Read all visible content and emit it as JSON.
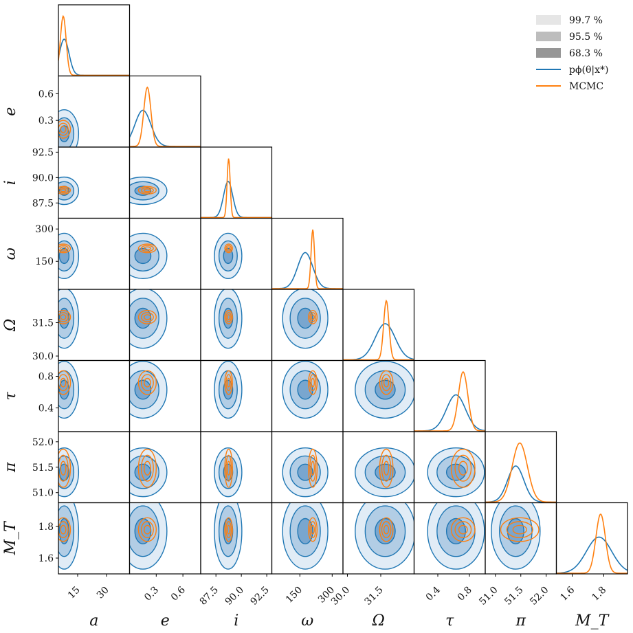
{
  "chart_data": {
    "type": "corner",
    "parameters": [
      "a",
      "e",
      "i",
      "ω",
      "Ω",
      "τ",
      "π",
      "M_T"
    ],
    "axis_labels": [
      "a",
      "e",
      "i",
      "ω",
      "Ω",
      "τ",
      "π",
      "M_T"
    ],
    "ranges": [
      [
        5,
        42
      ],
      [
        0.0,
        0.8
      ],
      [
        86.0,
        93.0
      ],
      [
        20,
        350
      ],
      [
        29.8,
        33.0
      ],
      [
        0.1,
        1.0
      ],
      [
        50.8,
        52.2
      ],
      [
        1.5,
        1.95
      ]
    ],
    "x_ticks": [
      [
        15,
        30
      ],
      [
        0.3,
        0.6
      ],
      [
        87.5,
        90.0,
        92.5
      ],
      [
        150,
        300
      ],
      [
        30.0,
        31.5
      ],
      [
        0.4,
        0.8
      ],
      [
        51.0,
        51.5,
        52.0
      ],
      [
        1.6,
        1.8
      ]
    ],
    "y_ticks": [
      null,
      [
        0.3,
        0.6
      ],
      [
        87.5,
        90.0,
        92.5
      ],
      [
        150,
        300
      ],
      [
        30.0,
        31.5
      ],
      [
        0.4,
        0.8
      ],
      [
        51.0,
        51.5,
        52.0
      ],
      [
        1.6,
        1.8
      ]
    ],
    "estimates": {
      "p_phi": {
        "center": [
          8,
          0.15,
          88.7,
          175,
          31.7,
          0.63,
          51.4,
          1.77
        ],
        "spread": [
          2.5,
          0.09,
          0.45,
          35,
          0.45,
          0.12,
          0.16,
          0.08
        ]
      },
      "mcmc": {
        "center": [
          7.5,
          0.2,
          88.75,
          210,
          31.75,
          0.72,
          51.48,
          1.78
        ],
        "spread": [
          1.5,
          0.04,
          0.15,
          8,
          0.12,
          0.06,
          0.15,
          0.03
        ]
      }
    },
    "legend": [
      {
        "label": "99.7 %",
        "color": "#e6e6e6",
        "kind": "patch"
      },
      {
        "label": "95.5 %",
        "color": "#bdbdbd",
        "kind": "patch"
      },
      {
        "label": "68.3 %",
        "color": "#969696",
        "kind": "patch"
      },
      {
        "label": "pϕ(θ|x*)",
        "color": "#1f77b4",
        "kind": "line"
      },
      {
        "label": "MCMC",
        "color": "#ff7f0e",
        "kind": "line"
      }
    ],
    "legend_position": "top-right",
    "colors": {
      "blue": "#1f77b4",
      "orange": "#ff7f0e",
      "fill_light": "#dce9f4",
      "fill_mid": "#a9c8e2",
      "fill_dark": "#6f9fcb"
    }
  }
}
